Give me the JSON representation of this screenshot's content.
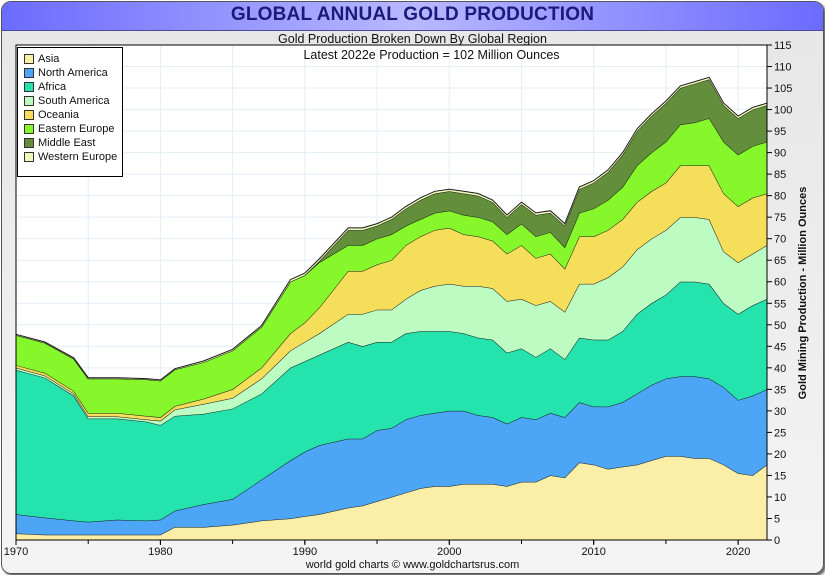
{
  "header": {
    "title": "GLOBAL ANNUAL GOLD PRODUCTION",
    "subtitle": "Gold Production Broken Down By Global Region"
  },
  "footer": {
    "credit": "world gold charts © www.goldchartsrus.com"
  },
  "chart_data": {
    "type": "area",
    "stacked": true,
    "title": "GLOBAL ANNUAL GOLD PRODUCTION",
    "subtitle": "Gold Production Broken Down By Global Region",
    "annotation": "Latest 2022e Production = 102 Million Ounces",
    "xlabel": "",
    "ylabel": "Gold Mining Production - Million Ounces",
    "xlim": [
      1970,
      2022
    ],
    "ylim": [
      0,
      115
    ],
    "x_ticks": [
      1970,
      1980,
      1990,
      2000,
      2010,
      2020
    ],
    "y_ticks": [
      0,
      5,
      10,
      15,
      20,
      25,
      30,
      35,
      40,
      45,
      50,
      55,
      60,
      65,
      70,
      75,
      80,
      85,
      90,
      95,
      100,
      105,
      110,
      115
    ],
    "y_axis_side": "right",
    "grid": true,
    "legend_position": "top-left",
    "x": [
      1970,
      1972,
      1974,
      1975,
      1977,
      1979,
      1980,
      1981,
      1983,
      1985,
      1987,
      1989,
      1990,
      1991,
      1993,
      1994,
      1995,
      1996,
      1997,
      1998,
      1999,
      2000,
      2001,
      2002,
      2003,
      2004,
      2005,
      2006,
      2007,
      2008,
      2009,
      2010,
      2011,
      2012,
      2013,
      2014,
      2015,
      2016,
      2017,
      2018,
      2019,
      2020,
      2021,
      2022
    ],
    "series": [
      {
        "name": "Asia",
        "color": "#fbefa8",
        "values": [
          1.5,
          1.2,
          1.2,
          1.2,
          1.2,
          1.2,
          1.2,
          3.0,
          3.0,
          3.5,
          4.5,
          5.0,
          5.5,
          6.0,
          7.5,
          8.0,
          9.0,
          10.0,
          11.0,
          12.0,
          12.5,
          12.5,
          13.0,
          13.0,
          13.0,
          12.5,
          13.5,
          13.5,
          15.0,
          14.5,
          18.0,
          17.5,
          16.5,
          17.0,
          17.5,
          18.5,
          19.5,
          19.5,
          19.0,
          19.0,
          17.5,
          15.5,
          15.0,
          17.5
        ]
      },
      {
        "name": "North America",
        "color": "#4da6f5",
        "values": [
          4.5,
          4.0,
          3.3,
          3.0,
          3.5,
          3.3,
          3.5,
          3.8,
          5.3,
          6.0,
          9.5,
          13.5,
          15.0,
          16.0,
          16.0,
          15.5,
          16.5,
          16.0,
          17.0,
          17.0,
          17.0,
          17.5,
          17.0,
          16.0,
          15.5,
          14.5,
          15.0,
          14.5,
          14.5,
          14.0,
          14.0,
          13.5,
          14.5,
          15.0,
          16.5,
          17.5,
          18.0,
          18.5,
          19.0,
          18.5,
          18.0,
          17.0,
          18.5,
          17.5
        ]
      },
      {
        "name": "Africa",
        "color": "#24e3ad",
        "values": [
          33.5,
          32.5,
          29.0,
          24.0,
          23.5,
          23.0,
          22.0,
          22.0,
          21.0,
          21.0,
          20.0,
          21.5,
          21.0,
          21.0,
          22.5,
          21.5,
          20.5,
          20.0,
          20.0,
          19.5,
          19.0,
          18.5,
          18.0,
          18.0,
          18.0,
          16.5,
          16.0,
          14.5,
          15.0,
          13.5,
          15.0,
          15.5,
          15.5,
          16.5,
          18.5,
          19.0,
          19.5,
          22.0,
          22.0,
          22.0,
          19.5,
          20.0,
          21.0,
          21.0
        ]
      },
      {
        "name": "South America",
        "color": "#bcfcc2",
        "values": [
          0.5,
          0.5,
          0.5,
          0.5,
          0.5,
          0.5,
          1.0,
          1.5,
          2.3,
          2.5,
          3.5,
          4.0,
          4.5,
          5.0,
          6.5,
          7.5,
          7.5,
          7.5,
          8.0,
          9.5,
          10.5,
          11.0,
          11.0,
          12.0,
          12.0,
          12.0,
          11.5,
          12.0,
          11.0,
          11.0,
          12.5,
          13.0,
          14.5,
          15.0,
          15.0,
          15.0,
          15.0,
          15.0,
          15.0,
          15.0,
          12.0,
          12.0,
          12.0,
          12.5
        ]
      },
      {
        "name": "Oceania",
        "color": "#f5de5a",
        "values": [
          0.6,
          0.6,
          0.6,
          0.8,
          0.8,
          0.8,
          0.8,
          0.8,
          1.2,
          2.0,
          2.5,
          4.0,
          4.5,
          6.0,
          10.0,
          10.0,
          10.5,
          11.5,
          12.5,
          12.5,
          13.0,
          13.0,
          12.0,
          11.5,
          11.0,
          11.0,
          12.5,
          11.0,
          11.0,
          10.0,
          11.0,
          11.0,
          11.0,
          11.0,
          11.0,
          11.0,
          11.0,
          12.0,
          12.0,
          12.5,
          13.5,
          13.0,
          13.0,
          12.0
        ]
      },
      {
        "name": "Eastern Europe",
        "color": "#85f72a",
        "values": [
          7.0,
          7.0,
          7.5,
          8.0,
          8.0,
          8.5,
          8.5,
          8.5,
          8.5,
          9.0,
          9.5,
          12.0,
          11.0,
          10.5,
          6.0,
          6.0,
          6.0,
          6.0,
          4.5,
          4.0,
          4.0,
          4.0,
          4.5,
          4.5,
          4.5,
          4.5,
          5.0,
          5.0,
          5.0,
          5.0,
          5.5,
          6.5,
          7.0,
          7.5,
          8.5,
          9.0,
          9.5,
          9.5,
          10.0,
          11.0,
          12.0,
          12.0,
          12.0,
          12.0
        ]
      },
      {
        "name": "Middle East",
        "color": "#638f3c",
        "values": [
          0,
          0,
          0,
          0,
          0,
          0,
          0,
          0,
          0,
          0,
          0,
          0,
          0,
          0.3,
          3.5,
          3.5,
          3.0,
          3.5,
          4.0,
          4.5,
          4.5,
          4.5,
          5.0,
          5.0,
          4.5,
          4.0,
          4.5,
          5.0,
          4.5,
          5.0,
          5.5,
          6.0,
          6.5,
          7.5,
          8.0,
          8.5,
          9.0,
          8.5,
          9.0,
          9.0,
          8.5,
          8.5,
          8.5,
          8.5
        ]
      },
      {
        "name": "Western Europe",
        "color": "#ecf9b8",
        "values": [
          0.2,
          0.2,
          0.2,
          0.2,
          0.2,
          0.2,
          0.2,
          0.2,
          0.3,
          0.3,
          0.3,
          0.5,
          0.5,
          0.5,
          0.5,
          0.5,
          0.5,
          0.5,
          0.5,
          0.5,
          0.5,
          0.5,
          0.5,
          0.5,
          0.5,
          0.5,
          0.5,
          0.5,
          0.5,
          0.5,
          0.5,
          0.5,
          0.5,
          0.5,
          0.5,
          0.5,
          0.5,
          0.5,
          0.5,
          0.5,
          0.5,
          0.5,
          0.5,
          0.5
        ]
      }
    ]
  },
  "legend": {
    "items": [
      {
        "label": "Asia",
        "color": "#fbefa8"
      },
      {
        "label": "North America",
        "color": "#4da6f5"
      },
      {
        "label": "Africa",
        "color": "#24e3ad"
      },
      {
        "label": "South America",
        "color": "#bcfcc2"
      },
      {
        "label": "Oceania",
        "color": "#f5de5a"
      },
      {
        "label": "Eastern Europe",
        "color": "#85f72a"
      },
      {
        "label": "Middle East",
        "color": "#638f3c"
      },
      {
        "label": "Western Europe",
        "color": "#ecf9b8"
      }
    ]
  },
  "colors": {
    "title_text": "#1a1a7a",
    "title_bar": "#8a8aff",
    "grid": "#e3eef8",
    "plot_bg": "#ffffff"
  }
}
